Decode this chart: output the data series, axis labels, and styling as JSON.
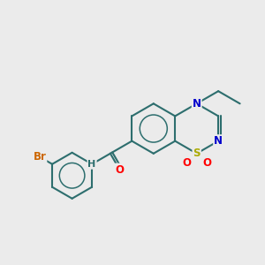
{
  "background_color": "#ebebeb",
  "bond_color": "#2d6e6e",
  "bond_width": 1.5,
  "atom_colors": {
    "N": "#0000cc",
    "S": "#aaaa00",
    "O": "#ff0000",
    "Br": "#cc6600",
    "C": "#2d6e6e",
    "H": "#2d6e6e"
  },
  "font_size": 8.5,
  "figsize": [
    3.0,
    3.0
  ],
  "dpi": 100
}
